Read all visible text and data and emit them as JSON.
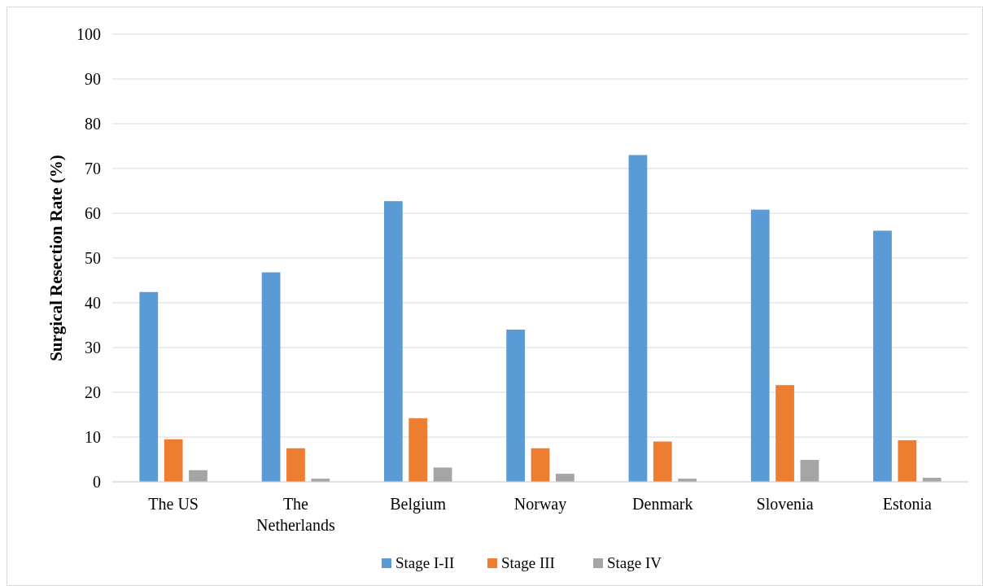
{
  "chart_data": {
    "type": "bar",
    "ylabel": "Surgical Resection Rate (%)",
    "categories": [
      "The US",
      "The Netherlands",
      "Belgium",
      "Norway",
      "Denmark",
      "Slovenia",
      "Estonia"
    ],
    "series": [
      {
        "name": "Stage I-II",
        "color": "#5b9bd5",
        "values": [
          42.4,
          46.8,
          62.7,
          34,
          73,
          60.8,
          56.1
        ]
      },
      {
        "name": "Stage III",
        "color": "#ed7d31",
        "values": [
          9.5,
          7.5,
          14.2,
          7.5,
          9,
          21.6,
          9.3
        ]
      },
      {
        "name": "Stage IV",
        "color": "#a5a5a5",
        "values": [
          2.6,
          0.7,
          3.2,
          1.8,
          0.7,
          4.9,
          0.9
        ]
      }
    ],
    "ylim": [
      0,
      100
    ],
    "yticks": [
      0,
      10,
      20,
      30,
      40,
      50,
      60,
      70,
      80,
      90,
      100
    ],
    "grid": "y",
    "legend": "bottom"
  }
}
